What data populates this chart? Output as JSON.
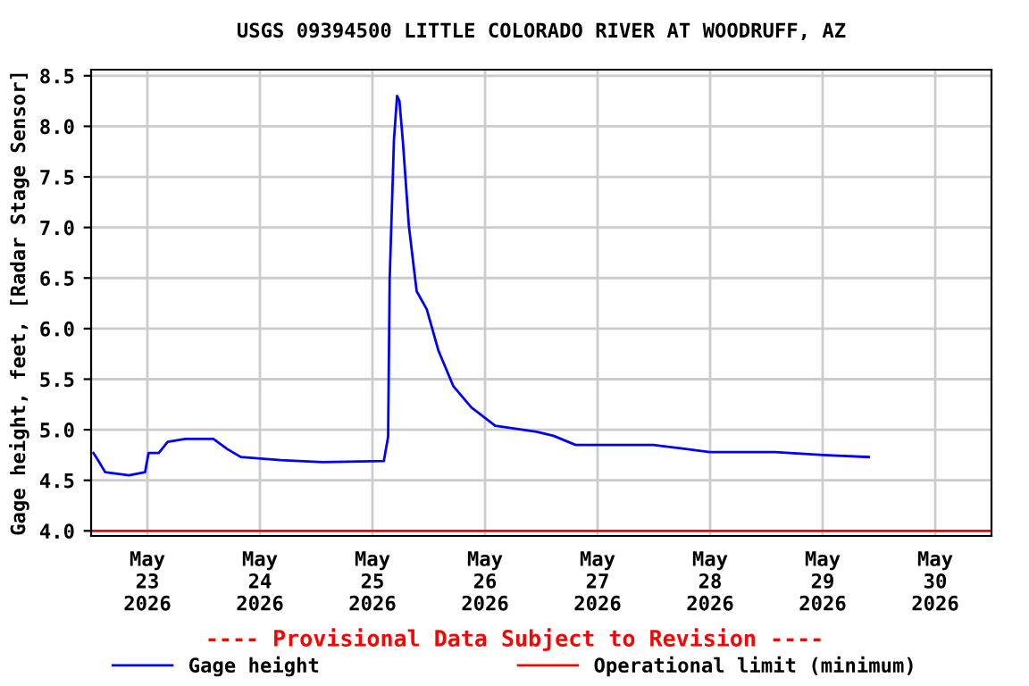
{
  "chart_data": {
    "type": "line",
    "title": "USGS 09394500 LITTLE COLORADO RIVER AT WOODRUFF, AZ",
    "ylabel": "Gage height, feet, [Radar Stage Sensor]",
    "x": [
      "2026-05-22T12:30",
      "2026-05-22T13:20",
      "2026-05-22T15:00",
      "2026-05-22T20:05",
      "2026-05-22T23:30",
      "2026-05-23T00:15",
      "2026-05-23T02:25",
      "2026-05-23T04:20",
      "2026-05-23T08:05",
      "2026-05-23T14:05",
      "2026-05-23T17:00",
      "2026-05-23T19:55",
      "2026-05-24T04:25",
      "2026-05-24T13:20",
      "2026-05-25T02:25",
      "2026-05-25T03:20",
      "2026-05-25T03:40",
      "2026-05-25T04:35",
      "2026-05-25T05:15",
      "2026-05-25T05:45",
      "2026-05-25T06:30",
      "2026-05-25T07:45",
      "2026-05-25T09:25",
      "2026-05-25T11:35",
      "2026-05-25T14:05",
      "2026-05-25T17:15",
      "2026-05-25T21:05",
      "2026-05-26T02:10",
      "2026-05-26T11:00",
      "2026-05-26T14:35",
      "2026-05-26T19:20",
      "2026-05-27T11:50",
      "2026-05-27T23:55",
      "2026-05-28T13:50",
      "2026-05-29T00:00",
      "2026-05-29T09:50"
    ],
    "series": [
      {
        "name": "Gage height",
        "color": "#0000ff",
        "values": [
          4.77,
          4.71,
          4.58,
          4.55,
          4.58,
          4.77,
          4.77,
          4.88,
          4.91,
          4.91,
          4.81,
          4.73,
          4.7,
          4.68,
          4.69,
          4.93,
          6.49,
          7.87,
          8.3,
          8.25,
          7.84,
          7.02,
          6.37,
          6.19,
          5.78,
          5.43,
          5.22,
          5.04,
          4.98,
          4.94,
          4.85,
          4.85,
          4.78,
          4.78,
          4.75,
          4.73
        ]
      }
    ],
    "ref_lines": [
      {
        "axis": "y",
        "value": 4.0,
        "label": "Operational limit (minimum)",
        "color": "#ff0000"
      }
    ],
    "xlim": [
      "2026-05-22T12:00",
      "2026-05-30T12:00"
    ],
    "xticks": [
      {
        "value": "2026-05-23",
        "label": "May\n23\n2026"
      },
      {
        "value": "2026-05-24",
        "label": "May\n24\n2026"
      },
      {
        "value": "2026-05-25",
        "label": "May\n25\n2026"
      },
      {
        "value": "2026-05-26",
        "label": "May\n26\n2026"
      },
      {
        "value": "2026-05-27",
        "label": "May\n27\n2026"
      },
      {
        "value": "2026-05-28",
        "label": "May\n28\n2026"
      },
      {
        "value": "2026-05-29",
        "label": "May\n29\n2026"
      },
      {
        "value": "2026-05-30",
        "label": "May\n30\n2026"
      }
    ],
    "ylim": [
      3.95,
      8.56
    ],
    "yticks": [
      {
        "value": 4,
        "label": "4.0"
      },
      4.5,
      {
        "value": 5,
        "label": "5.0"
      },
      5.5,
      {
        "value": 6,
        "label": "6.0"
      },
      6.5,
      {
        "value": 7,
        "label": "7.0"
      },
      7.5,
      {
        "value": 8,
        "label": "8.0"
      },
      8.5
    ],
    "grid": true,
    "legend": "bottom",
    "marker": "none",
    "line_style": "solid",
    "annotations": [
      "---- Provisional Data Subject to Revision ----"
    ]
  }
}
